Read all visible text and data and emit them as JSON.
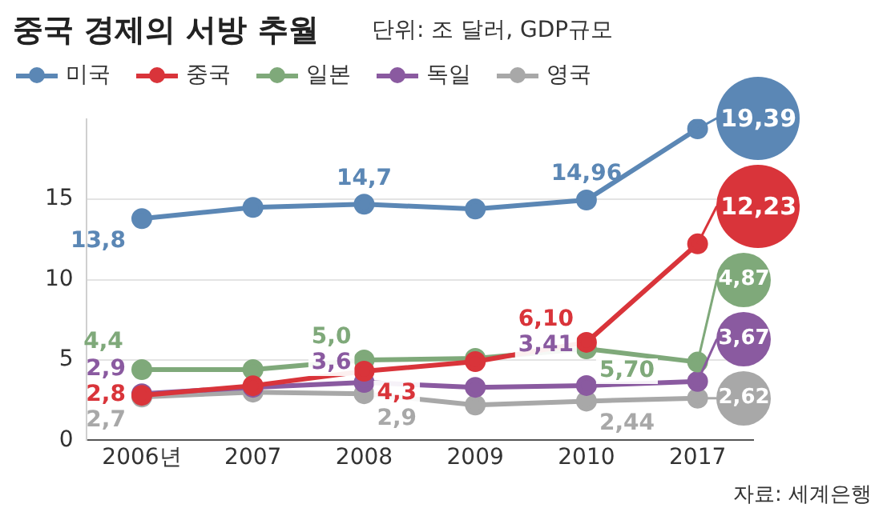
{
  "chart_data": {
    "type": "line",
    "title": "중국 경제의 서방 추월",
    "subtitle": "단위: 조 달러, GDP규모",
    "categories": [
      "2006년",
      "2007",
      "2008",
      "2009",
      "2010",
      "2017"
    ],
    "series": [
      {
        "name": "미국",
        "color": "#5b87b5",
        "values": [
          13.8,
          14.5,
          14.7,
          14.4,
          14.96,
          19.39
        ],
        "value_labels": [
          "13,8",
          null,
          "14,7",
          null,
          "14,96",
          "19,39"
        ]
      },
      {
        "name": "중국",
        "color": "#d9343a",
        "values": [
          2.8,
          3.4,
          4.3,
          4.9,
          6.1,
          12.23
        ],
        "value_labels": [
          "2,8",
          null,
          "4,3",
          null,
          "6,10",
          "12,23"
        ]
      },
      {
        "name": "일본",
        "color": "#7fa97a",
        "values": [
          4.4,
          4.4,
          5.0,
          5.1,
          5.7,
          4.87
        ],
        "value_labels": [
          "4,4",
          null,
          "5,0",
          null,
          "5,70",
          "4,87"
        ]
      },
      {
        "name": "독일",
        "color": "#8a5aa0",
        "values": [
          2.9,
          3.3,
          3.6,
          3.3,
          3.41,
          3.67
        ],
        "value_labels": [
          "2,9",
          null,
          "3,6",
          null,
          "3,41",
          "3,67"
        ]
      },
      {
        "name": "영국",
        "color": "#a8a8a8",
        "values": [
          2.7,
          3.0,
          2.9,
          2.2,
          2.44,
          2.62
        ],
        "value_labels": [
          "2,7",
          null,
          "2,9",
          null,
          "2,44",
          "2,62"
        ]
      }
    ],
    "ylim": [
      0,
      20
    ],
    "yticks": [
      0,
      5,
      10,
      15
    ],
    "grid": "y",
    "legend": "top left",
    "marker": "circle",
    "line_style": "solid",
    "annotations": [
      "자료: 세계은행"
    ]
  }
}
